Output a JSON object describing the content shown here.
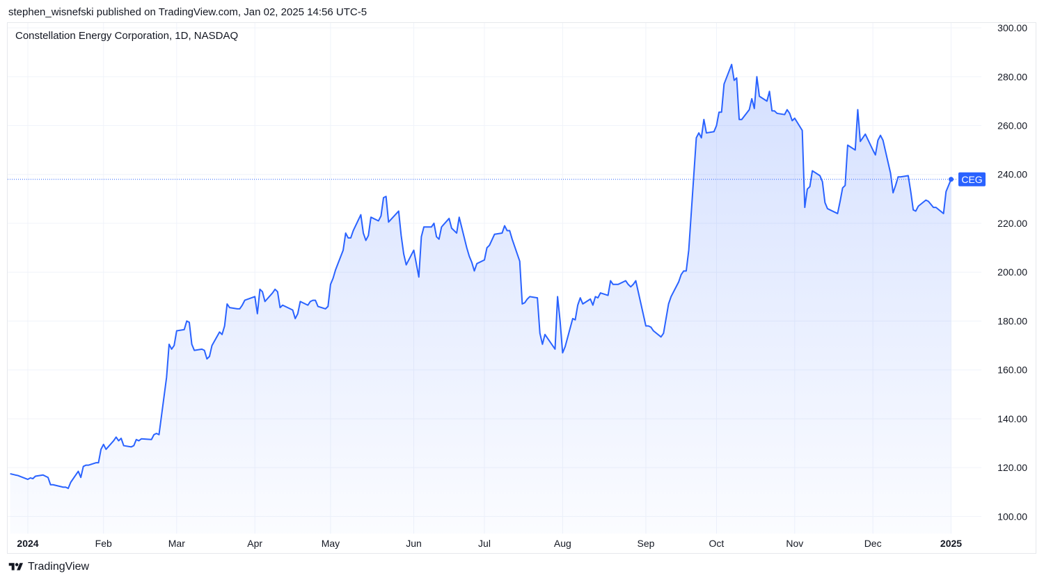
{
  "header": {
    "published_line": "stephen_wisnefski published on TradingView.com, Jan 02, 2025 14:56 UTC-5"
  },
  "chart_title": "Constellation Energy Corporation, 1D, NASDAQ",
  "footer": {
    "brand": "TradingView",
    "logo_icon": "tradingview-logo-icon"
  },
  "colors": {
    "line": "#2962ff",
    "fill_top": "#2962ff",
    "grid": "#f0f3fa",
    "axis_text": "#131722",
    "label_bg": "#2962ff",
    "label_text": "#ffffff"
  },
  "chart_data": {
    "type": "area",
    "symbol_label": "CEG",
    "last_value": 238.0,
    "ylim": [
      93,
      302
    ],
    "y_ticks": [
      100,
      120,
      140,
      160,
      180,
      200,
      220,
      240,
      260,
      280,
      300
    ],
    "y_tick_labels": [
      "100.00",
      "120.00",
      "140.00",
      "160.00",
      "180.00",
      "200.00",
      "220.00",
      "240.00",
      "260.00",
      "280.00",
      "300.00"
    ],
    "x_ticks": [
      {
        "label": "2024",
        "date": "2024-01-02",
        "bold": true
      },
      {
        "label": "Feb",
        "date": "2024-02-01",
        "bold": false
      },
      {
        "label": "Mar",
        "date": "2024-03-01",
        "bold": false
      },
      {
        "label": "Apr",
        "date": "2024-04-01",
        "bold": false
      },
      {
        "label": "May",
        "date": "2024-05-01",
        "bold": false
      },
      {
        "label": "Jun",
        "date": "2024-06-03",
        "bold": false
      },
      {
        "label": "Jul",
        "date": "2024-07-01",
        "bold": false
      },
      {
        "label": "Aug",
        "date": "2024-08-01",
        "bold": false
      },
      {
        "label": "Sep",
        "date": "2024-09-03",
        "bold": false
      },
      {
        "label": "Oct",
        "date": "2024-10-01",
        "bold": false
      },
      {
        "label": "Nov",
        "date": "2024-11-01",
        "bold": false
      },
      {
        "label": "Dec",
        "date": "2024-12-02",
        "bold": false
      },
      {
        "label": "2025",
        "date": "2025-01-02",
        "bold": true
      }
    ],
    "xlim": [
      "2023-12-25",
      "2025-01-14"
    ],
    "series": [
      {
        "points": [
          [
            "2023-12-26",
            117.5
          ],
          [
            "2023-12-28",
            117
          ],
          [
            "2023-12-29",
            116.8
          ],
          [
            "2024-01-02",
            115.2
          ],
          [
            "2024-01-03",
            115.8
          ],
          [
            "2024-01-04",
            115.5
          ],
          [
            "2024-01-05",
            116.5
          ],
          [
            "2024-01-08",
            117
          ],
          [
            "2024-01-09",
            116.5
          ],
          [
            "2024-01-10",
            116
          ],
          [
            "2024-01-11",
            113
          ],
          [
            "2024-01-12",
            113
          ],
          [
            "2024-01-16",
            112
          ],
          [
            "2024-01-17",
            112
          ],
          [
            "2024-01-18",
            111.5
          ],
          [
            "2024-01-19",
            114
          ],
          [
            "2024-01-22",
            118.5
          ],
          [
            "2024-01-23",
            116
          ],
          [
            "2024-01-24",
            120.5
          ],
          [
            "2024-01-25",
            121
          ],
          [
            "2024-01-26",
            121
          ],
          [
            "2024-01-29",
            122
          ],
          [
            "2024-01-30",
            122
          ],
          [
            "2024-01-31",
            127.5
          ],
          [
            "2024-02-01",
            129.5
          ],
          [
            "2024-02-02",
            127.5
          ],
          [
            "2024-02-05",
            131
          ],
          [
            "2024-02-06",
            132.5
          ],
          [
            "2024-02-07",
            131
          ],
          [
            "2024-02-08",
            132
          ],
          [
            "2024-02-09",
            129
          ],
          [
            "2024-02-12",
            128.5
          ],
          [
            "2024-02-13",
            129
          ],
          [
            "2024-02-14",
            131.5
          ],
          [
            "2024-02-15",
            131
          ],
          [
            "2024-02-16",
            131.8
          ],
          [
            "2024-02-20",
            131.5
          ],
          [
            "2024-02-21",
            133.5
          ],
          [
            "2024-02-22",
            134
          ],
          [
            "2024-02-23",
            133.5
          ],
          [
            "2024-02-26",
            157
          ],
          [
            "2024-02-27",
            170.5
          ],
          [
            "2024-02-28",
            168.5
          ],
          [
            "2024-02-29",
            170
          ],
          [
            "2024-03-01",
            176
          ],
          [
            "2024-03-04",
            176.5
          ],
          [
            "2024-03-05",
            180
          ],
          [
            "2024-03-06",
            179.5
          ],
          [
            "2024-03-07",
            170.5
          ],
          [
            "2024-03-08",
            168
          ],
          [
            "2024-03-11",
            168.5
          ],
          [
            "2024-03-12",
            168
          ],
          [
            "2024-03-13",
            164.5
          ],
          [
            "2024-03-14",
            165.5
          ],
          [
            "2024-03-15",
            170
          ],
          [
            "2024-03-18",
            175.5
          ],
          [
            "2024-03-19",
            174.5
          ],
          [
            "2024-03-20",
            178
          ],
          [
            "2024-03-21",
            187
          ],
          [
            "2024-03-22",
            185.5
          ],
          [
            "2024-03-25",
            185
          ],
          [
            "2024-03-26",
            185
          ],
          [
            "2024-03-27",
            186.5
          ],
          [
            "2024-03-28",
            188.5
          ],
          [
            "2024-04-01",
            190
          ],
          [
            "2024-04-02",
            183
          ],
          [
            "2024-04-03",
            193
          ],
          [
            "2024-04-04",
            192
          ],
          [
            "2024-04-05",
            188
          ],
          [
            "2024-04-08",
            191.5
          ],
          [
            "2024-04-09",
            193
          ],
          [
            "2024-04-10",
            192
          ],
          [
            "2024-04-11",
            185.5
          ],
          [
            "2024-04-12",
            186.5
          ],
          [
            "2024-04-15",
            185
          ],
          [
            "2024-04-16",
            184.5
          ],
          [
            "2024-04-17",
            181
          ],
          [
            "2024-04-18",
            183
          ],
          [
            "2024-04-19",
            188
          ],
          [
            "2024-04-22",
            186.5
          ],
          [
            "2024-04-23",
            188
          ],
          [
            "2024-04-24",
            188.5
          ],
          [
            "2024-04-25",
            188.5
          ],
          [
            "2024-04-26",
            186
          ],
          [
            "2024-04-29",
            185
          ],
          [
            "2024-04-30",
            186
          ],
          [
            "2024-05-01",
            195
          ],
          [
            "2024-05-02",
            197.5
          ],
          [
            "2024-05-03",
            201
          ],
          [
            "2024-05-06",
            209
          ],
          [
            "2024-05-07",
            216
          ],
          [
            "2024-05-08",
            214
          ],
          [
            "2024-05-09",
            214
          ],
          [
            "2024-05-10",
            217
          ],
          [
            "2024-05-13",
            223.5
          ],
          [
            "2024-05-14",
            216
          ],
          [
            "2024-05-15",
            213
          ],
          [
            "2024-05-16",
            215
          ],
          [
            "2024-05-17",
            222.5
          ],
          [
            "2024-05-20",
            221
          ],
          [
            "2024-05-21",
            223
          ],
          [
            "2024-05-22",
            230.5
          ],
          [
            "2024-05-23",
            231
          ],
          [
            "2024-05-24",
            220.5
          ],
          [
            "2024-05-28",
            225
          ],
          [
            "2024-05-29",
            215
          ],
          [
            "2024-05-30",
            207.5
          ],
          [
            "2024-05-31",
            203
          ],
          [
            "2024-06-03",
            209
          ],
          [
            "2024-06-04",
            203.5
          ],
          [
            "2024-06-05",
            198
          ],
          [
            "2024-06-06",
            214.5
          ],
          [
            "2024-06-07",
            218.5
          ],
          [
            "2024-06-10",
            218.5
          ],
          [
            "2024-06-11",
            220
          ],
          [
            "2024-06-12",
            214.5
          ],
          [
            "2024-06-13",
            213.5
          ],
          [
            "2024-06-14",
            218.5
          ],
          [
            "2024-06-17",
            222
          ],
          [
            "2024-06-18",
            218
          ],
          [
            "2024-06-20",
            216
          ],
          [
            "2024-06-21",
            222.5
          ],
          [
            "2024-06-24",
            210
          ],
          [
            "2024-06-25",
            206.5
          ],
          [
            "2024-06-26",
            204
          ],
          [
            "2024-06-27",
            200.5
          ],
          [
            "2024-06-28",
            203.5
          ],
          [
            "2024-07-01",
            205
          ],
          [
            "2024-07-02",
            210
          ],
          [
            "2024-07-03",
            211
          ],
          [
            "2024-07-05",
            215.5
          ],
          [
            "2024-07-08",
            216
          ],
          [
            "2024-07-09",
            219
          ],
          [
            "2024-07-10",
            217
          ],
          [
            "2024-07-11",
            217
          ],
          [
            "2024-07-12",
            213.5
          ],
          [
            "2024-07-15",
            204.5
          ],
          [
            "2024-07-16",
            187
          ],
          [
            "2024-07-17",
            187.5
          ],
          [
            "2024-07-18",
            189
          ],
          [
            "2024-07-19",
            190
          ],
          [
            "2024-07-22",
            189.5
          ],
          [
            "2024-07-23",
            175
          ],
          [
            "2024-07-24",
            170.5
          ],
          [
            "2024-07-25",
            174.5
          ],
          [
            "2024-07-26",
            173
          ],
          [
            "2024-07-29",
            168.5
          ],
          [
            "2024-07-30",
            190
          ],
          [
            "2024-07-31",
            180
          ],
          [
            "2024-08-01",
            167
          ],
          [
            "2024-08-02",
            169.5
          ],
          [
            "2024-08-05",
            181
          ],
          [
            "2024-08-06",
            180.5
          ],
          [
            "2024-08-07",
            186.5
          ],
          [
            "2024-08-08",
            189.5
          ],
          [
            "2024-08-09",
            187
          ],
          [
            "2024-08-12",
            189
          ],
          [
            "2024-08-13",
            186.5
          ],
          [
            "2024-08-14",
            190
          ],
          [
            "2024-08-15",
            189.5
          ],
          [
            "2024-08-16",
            191.5
          ],
          [
            "2024-08-19",
            190.5
          ],
          [
            "2024-08-20",
            196.5
          ],
          [
            "2024-08-21",
            195
          ],
          [
            "2024-08-22",
            195
          ],
          [
            "2024-08-23",
            195
          ],
          [
            "2024-08-26",
            196.5
          ],
          [
            "2024-08-27",
            195
          ],
          [
            "2024-08-28",
            194
          ],
          [
            "2024-08-29",
            195
          ],
          [
            "2024-08-30",
            196.5
          ],
          [
            "2024-09-03",
            178
          ],
          [
            "2024-09-04",
            178
          ],
          [
            "2024-09-05",
            177.5
          ],
          [
            "2024-09-06",
            176
          ],
          [
            "2024-09-09",
            173.5
          ],
          [
            "2024-09-10",
            175
          ],
          [
            "2024-09-11",
            181
          ],
          [
            "2024-09-12",
            187
          ],
          [
            "2024-09-13",
            190
          ],
          [
            "2024-09-16",
            196
          ],
          [
            "2024-09-17",
            199
          ],
          [
            "2024-09-18",
            200.5
          ],
          [
            "2024-09-19",
            200.5
          ],
          [
            "2024-09-20",
            209
          ],
          [
            "2024-09-23",
            255
          ],
          [
            "2024-09-24",
            257
          ],
          [
            "2024-09-25",
            255
          ],
          [
            "2024-09-26",
            262.5
          ],
          [
            "2024-09-27",
            257
          ],
          [
            "2024-09-30",
            257.5
          ],
          [
            "2024-10-01",
            260
          ],
          [
            "2024-10-02",
            265.5
          ],
          [
            "2024-10-03",
            265.5
          ],
          [
            "2024-10-04",
            277
          ],
          [
            "2024-10-07",
            285
          ],
          [
            "2024-10-08",
            278.5
          ],
          [
            "2024-10-09",
            279.5
          ],
          [
            "2024-10-10",
            262.5
          ],
          [
            "2024-10-11",
            262.5
          ],
          [
            "2024-10-14",
            266.5
          ],
          [
            "2024-10-15",
            271
          ],
          [
            "2024-10-16",
            267
          ],
          [
            "2024-10-17",
            280
          ],
          [
            "2024-10-18",
            272
          ],
          [
            "2024-10-21",
            270
          ],
          [
            "2024-10-22",
            274
          ],
          [
            "2024-10-23",
            266
          ],
          [
            "2024-10-24",
            266
          ],
          [
            "2024-10-25",
            265
          ],
          [
            "2024-10-28",
            264.5
          ],
          [
            "2024-10-29",
            266.5
          ],
          [
            "2024-10-30",
            265
          ],
          [
            "2024-10-31",
            262
          ],
          [
            "2024-11-01",
            263
          ],
          [
            "2024-11-04",
            258
          ],
          [
            "2024-11-05",
            226.5
          ],
          [
            "2024-11-06",
            234
          ],
          [
            "2024-11-07",
            235
          ],
          [
            "2024-11-08",
            241.5
          ],
          [
            "2024-11-11",
            239.5
          ],
          [
            "2024-11-12",
            237
          ],
          [
            "2024-11-13",
            228.5
          ],
          [
            "2024-11-14",
            226
          ],
          [
            "2024-11-15",
            225.5
          ],
          [
            "2024-11-18",
            224
          ],
          [
            "2024-11-19",
            229
          ],
          [
            "2024-11-20",
            234.5
          ],
          [
            "2024-11-21",
            235.5
          ],
          [
            "2024-11-22",
            252
          ],
          [
            "2024-11-25",
            250
          ],
          [
            "2024-11-26",
            266.5
          ],
          [
            "2024-11-27",
            253.5
          ],
          [
            "2024-11-29",
            256.5
          ],
          [
            "2024-12-02",
            250
          ],
          [
            "2024-12-03",
            248
          ],
          [
            "2024-12-04",
            254
          ],
          [
            "2024-12-05",
            256
          ],
          [
            "2024-12-06",
            254
          ],
          [
            "2024-12-09",
            240.5
          ],
          [
            "2024-12-10",
            232.5
          ],
          [
            "2024-12-11",
            235.5
          ],
          [
            "2024-12-12",
            239
          ],
          [
            "2024-12-13",
            239
          ],
          [
            "2024-12-16",
            239.5
          ],
          [
            "2024-12-17",
            233
          ],
          [
            "2024-12-18",
            225.5
          ],
          [
            "2024-12-19",
            225
          ],
          [
            "2024-12-20",
            227
          ],
          [
            "2024-12-23",
            229.5
          ],
          [
            "2024-12-24",
            229
          ],
          [
            "2024-12-26",
            226.5
          ],
          [
            "2024-12-27",
            226.5
          ],
          [
            "2024-12-30",
            224
          ],
          [
            "2024-12-31",
            233
          ],
          [
            "2025-01-02",
            238
          ]
        ]
      }
    ]
  }
}
